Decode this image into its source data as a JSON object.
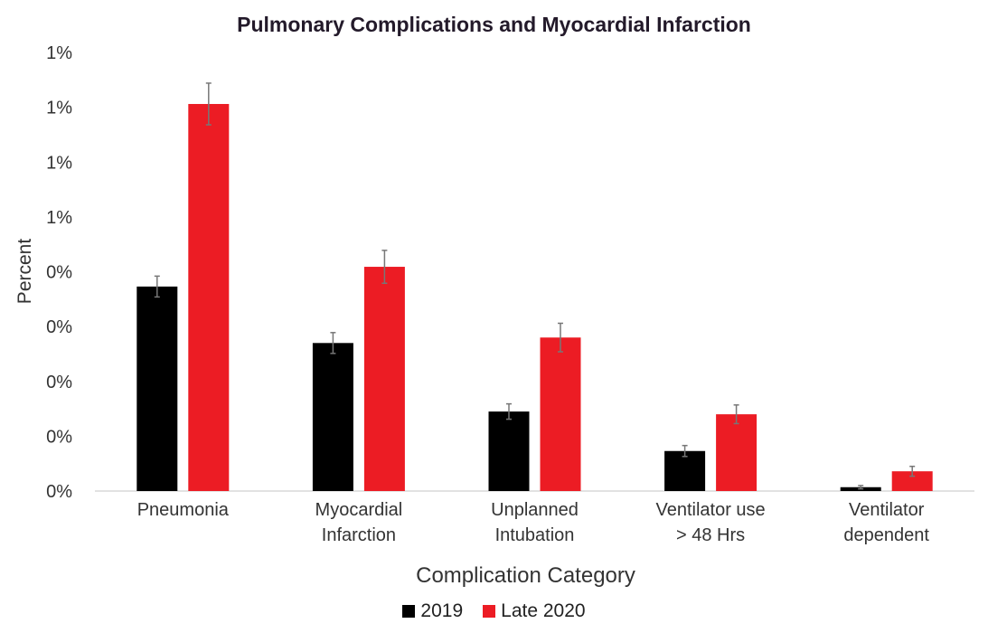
{
  "chart_data": {
    "type": "bar",
    "title": "Pulmonary Complications and Myocardial Infarction",
    "xlabel": "Complication Category",
    "ylabel": "Percent",
    "ylim": [
      0,
      0.8
    ],
    "yticks": [
      0,
      0.1,
      0.2,
      0.3,
      0.4,
      0.5,
      0.6,
      0.7,
      0.8
    ],
    "ytick_labels": [
      "0%",
      "0%",
      "0%",
      "0%",
      "0%",
      "1%",
      "1%",
      "1%",
      "1%"
    ],
    "grid": false,
    "legend_position": "bottom",
    "categories": [
      [
        "Pneumonia"
      ],
      [
        "Myocardial",
        "Infarction"
      ],
      [
        "Unplanned",
        "Intubation"
      ],
      [
        "Ventilator use",
        "> 48 Hrs"
      ],
      [
        "Ventilator",
        "dependent"
      ]
    ],
    "series": [
      {
        "name": "2019",
        "color": "#000000",
        "values": [
          0.373,
          0.27,
          0.145,
          0.073,
          0.007
        ],
        "errors": [
          0.019,
          0.019,
          0.014,
          0.01,
          0.003
        ]
      },
      {
        "name": "Late 2020",
        "color": "#ec1c24",
        "values": [
          0.706,
          0.409,
          0.28,
          0.14,
          0.036
        ],
        "errors": [
          0.038,
          0.03,
          0.026,
          0.017,
          0.009
        ]
      }
    ]
  }
}
